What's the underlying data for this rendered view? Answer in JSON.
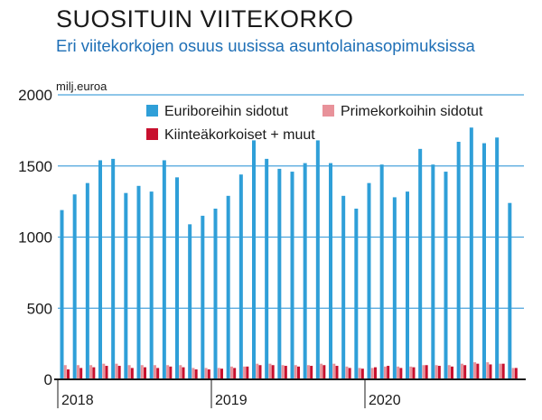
{
  "chart_data": {
    "type": "bar",
    "title": "SUOSITUIN VIITEKORKO",
    "subtitle": "Eri viitekorkojen osuus uusissa asuntolainasopimuksissa",
    "ylabel": "milj.euroa",
    "ylim": [
      0,
      2000
    ],
    "yticks": [
      0,
      500,
      1000,
      1500,
      2000
    ],
    "grid": true,
    "legend_position": "top-right",
    "year_labels": [
      "2018",
      "2019",
      "2020"
    ],
    "months_per_year": 12,
    "n_months": 36,
    "colors": {
      "euribor": "#2f9fd8",
      "prime": "#e8929a",
      "fixed": "#c8102e",
      "grid": "#4aa3dc",
      "axis": "#1a1a1a"
    },
    "series": [
      {
        "name": "Euriboreihin sidotut",
        "key": "euribor",
        "values": [
          1190,
          1300,
          1380,
          1540,
          1550,
          1310,
          1360,
          1320,
          1540,
          1420,
          1090,
          1150,
          1200,
          1290,
          1440,
          1680,
          1550,
          1480,
          1460,
          1520,
          1680,
          1520,
          1290,
          1200,
          1380,
          1510,
          1280,
          1320,
          1620,
          1510,
          1460,
          1670,
          1770,
          1660,
          1700,
          1240
        ]
      },
      {
        "name": "Primekorkoihin sidotut",
        "key": "prime",
        "values": [
          100,
          100,
          100,
          110,
          110,
          100,
          100,
          100,
          100,
          100,
          80,
          80,
          80,
          90,
          90,
          110,
          110,
          100,
          100,
          100,
          110,
          110,
          90,
          80,
          80,
          90,
          90,
          90,
          100,
          100,
          100,
          110,
          120,
          120,
          110,
          80
        ]
      },
      {
        "name": "Kiinteäkorkoiset + muut",
        "key": "fixed",
        "values": [
          70,
          80,
          85,
          95,
          95,
          80,
          85,
          80,
          90,
          85,
          70,
          70,
          75,
          80,
          90,
          100,
          100,
          95,
          90,
          95,
          100,
          95,
          80,
          75,
          85,
          95,
          80,
          85,
          100,
          95,
          90,
          100,
          110,
          105,
          110,
          80
        ]
      }
    ]
  }
}
